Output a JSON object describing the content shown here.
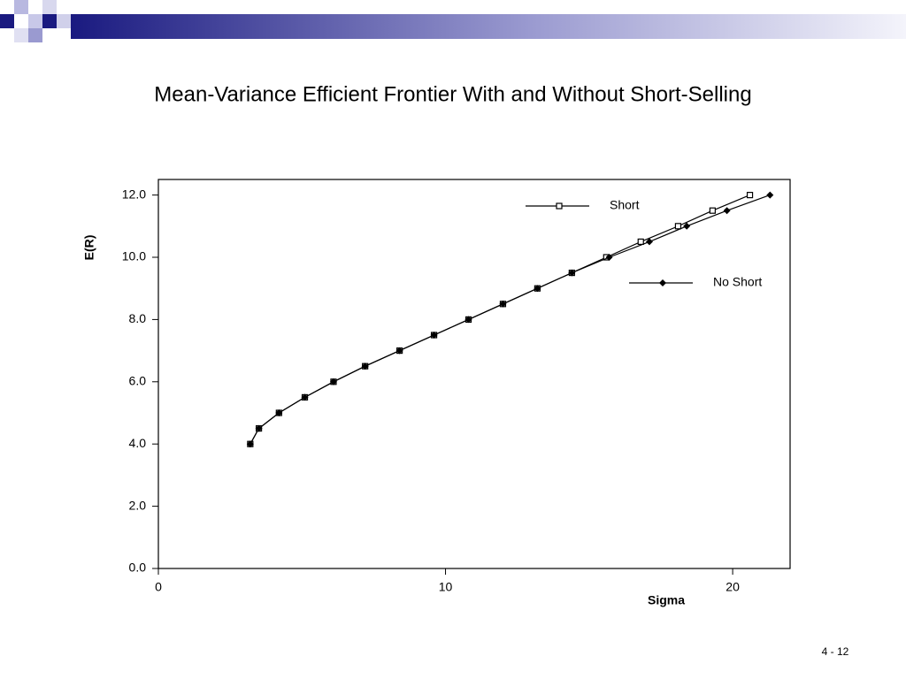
{
  "chart_data": {
    "type": "line",
    "title": "Mean-Variance Efficient Frontier With and Without Short-Selling",
    "x_label": "Sigma",
    "y_label": "E(R)",
    "xlim": [
      0,
      22
    ],
    "ylim": [
      0,
      12.5
    ],
    "xticks": [
      0,
      10,
      20
    ],
    "yticks": [
      {
        "value": 0,
        "label": "0.0"
      },
      {
        "value": 2,
        "label": "2.0"
      },
      {
        "value": 4,
        "label": "4.0"
      },
      {
        "value": 6,
        "label": "6.0"
      },
      {
        "value": 8,
        "label": "8.0"
      },
      {
        "value": 10,
        "label": "10.0"
      },
      {
        "value": 12,
        "label": "12.0"
      }
    ],
    "legend": "inside right",
    "series": [
      {
        "name": "Short",
        "color": "#000000",
        "marker": "open-square",
        "x": [
          3.2,
          3.5,
          4.2,
          5.1,
          6.1,
          7.2,
          8.4,
          9.6,
          10.8,
          12.0,
          13.2,
          14.4,
          15.6,
          16.8,
          18.1,
          19.3,
          20.6
        ],
        "values": [
          4.0,
          4.5,
          5.0,
          5.5,
          6.0,
          6.5,
          7.0,
          7.5,
          8.0,
          8.5,
          9.0,
          9.5,
          10.0,
          10.5,
          11.0,
          11.5,
          12.0
        ]
      },
      {
        "name": "No Short",
        "color": "#000000",
        "marker": "filled-diamond",
        "x": [
          3.2,
          3.5,
          4.2,
          5.1,
          6.1,
          7.2,
          8.4,
          9.6,
          10.8,
          12.0,
          13.2,
          14.4,
          15.7,
          17.1,
          18.4,
          19.8,
          21.3
        ],
        "values": [
          4.0,
          4.5,
          5.0,
          5.5,
          6.0,
          6.5,
          7.0,
          7.5,
          8.0,
          8.5,
          9.0,
          9.5,
          10.0,
          10.5,
          11.0,
          11.5,
          12.0
        ]
      }
    ]
  },
  "footer": {
    "page": "4 - 12"
  }
}
